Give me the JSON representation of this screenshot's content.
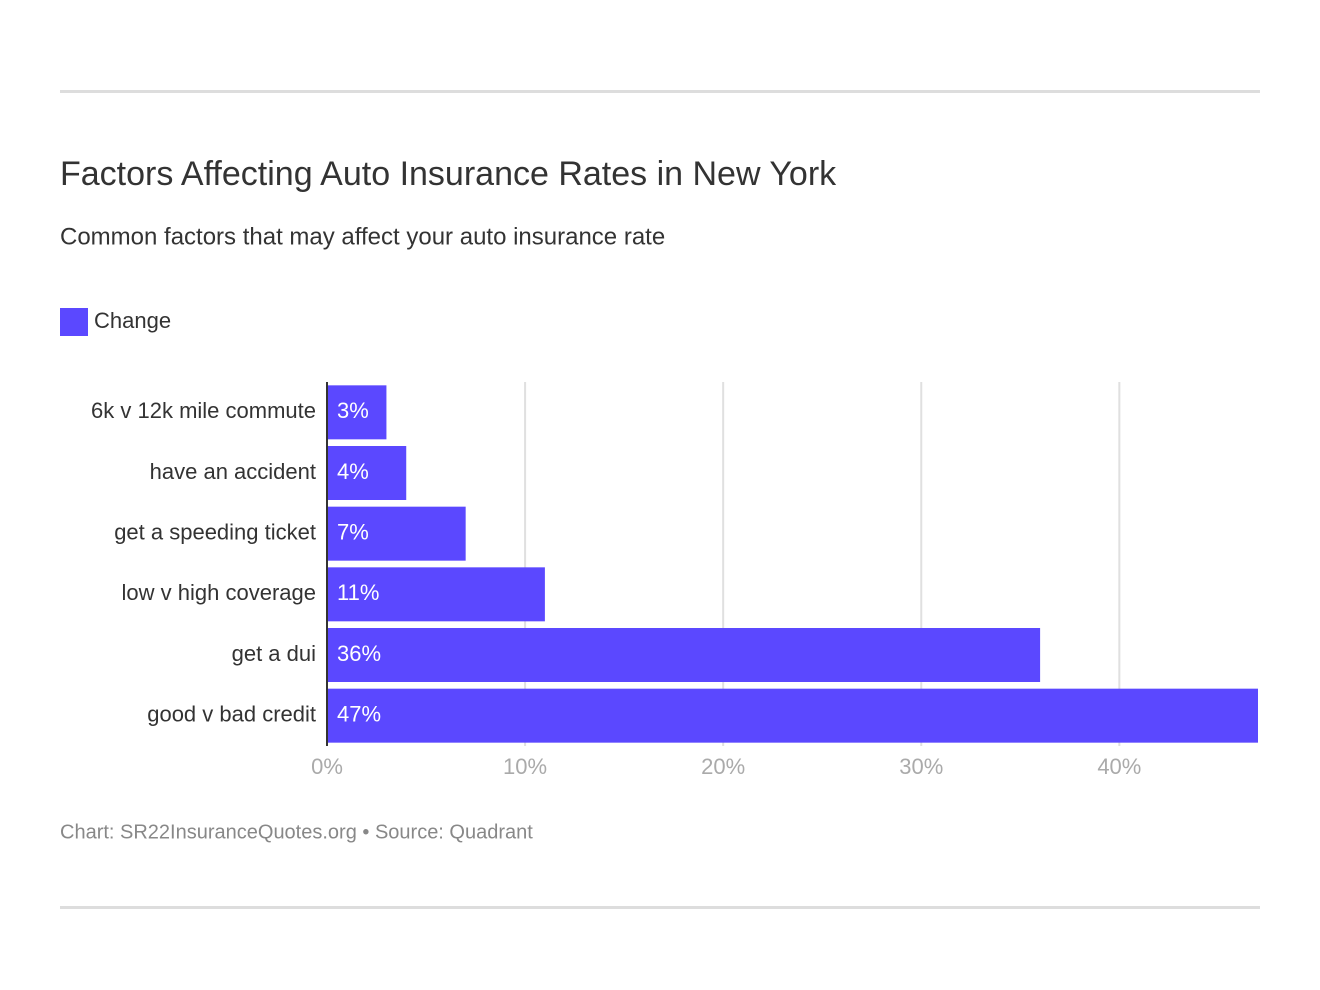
{
  "chart_data": {
    "type": "bar",
    "title": "Factors Affecting Auto Insurance Rates in New York",
    "subtitle": "Common factors that may affect your auto insurance rate",
    "source": "Chart: SR22InsuranceQuotes.org • Source: Quadrant",
    "categories": [
      "6k v 12k mile commute",
      "have an accident",
      "get a speeding ticket",
      "low v high coverage",
      "get a dui",
      "good v bad credit"
    ],
    "series": [
      {
        "name": "Change",
        "color": "#5b48ff",
        "values": [
          3,
          4,
          7,
          11,
          36,
          47
        ],
        "value_labels": [
          "3%",
          "4%",
          "7%",
          "11%",
          "36%",
          "47%"
        ]
      }
    ],
    "xlim": [
      0,
      47
    ],
    "xticks": [
      {
        "value": 0,
        "label": "0%"
      },
      {
        "value": 10,
        "label": "10%"
      },
      {
        "value": 20,
        "label": "20%"
      },
      {
        "value": 30,
        "label": "30%"
      },
      {
        "value": 40,
        "label": "40%"
      }
    ],
    "grid": true
  }
}
